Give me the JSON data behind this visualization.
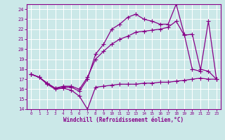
{
  "background_color": "#cbe8e8",
  "grid_color": "#aad4d4",
  "line_color": "#880088",
  "xlabel": "Windchill (Refroidissement éolien,°C)",
  "xlim": [
    -0.5,
    23.5
  ],
  "ylim": [
    14,
    24.5
  ],
  "yticks": [
    14,
    15,
    16,
    17,
    18,
    19,
    20,
    21,
    22,
    23,
    24
  ],
  "xticks": [
    0,
    1,
    2,
    3,
    4,
    5,
    6,
    7,
    8,
    9,
    10,
    11,
    12,
    13,
    14,
    15,
    16,
    17,
    18,
    19,
    20,
    21,
    22,
    23
  ],
  "series": [
    {
      "comment": "bottom flat line - dips to 14 at x=7 then rises slowly",
      "x": [
        0,
        1,
        2,
        3,
        4,
        5,
        6,
        7,
        8,
        9,
        10,
        11,
        12,
        13,
        14,
        15,
        16,
        17,
        18,
        19,
        20,
        21,
        22,
        23
      ],
      "y": [
        17.5,
        17.2,
        16.5,
        16.0,
        16.1,
        15.9,
        15.3,
        14.0,
        16.2,
        16.3,
        16.4,
        16.5,
        16.5,
        16.5,
        16.6,
        16.6,
        16.7,
        16.7,
        16.8,
        16.9,
        17.0,
        17.1,
        17.0,
        17.0
      ]
    },
    {
      "comment": "top wiggly line - rises steeply, peaks ~24.5 at x=18",
      "x": [
        0,
        1,
        2,
        3,
        4,
        5,
        6,
        7,
        8,
        9,
        10,
        11,
        12,
        13,
        14,
        15,
        16,
        17,
        18,
        19,
        20,
        21,
        22,
        23
      ],
      "y": [
        17.5,
        17.2,
        16.6,
        16.1,
        16.2,
        16.2,
        15.8,
        17.0,
        19.5,
        20.5,
        22.0,
        22.5,
        23.2,
        23.5,
        23.0,
        22.8,
        22.5,
        22.5,
        24.5,
        21.5,
        18.0,
        17.8,
        22.8,
        17.0
      ]
    },
    {
      "comment": "middle smooth line - rises gradually to 21.5 at x=20, drops",
      "x": [
        0,
        1,
        2,
        3,
        4,
        5,
        6,
        7,
        8,
        9,
        10,
        11,
        12,
        13,
        14,
        15,
        16,
        17,
        18,
        19,
        20,
        21,
        22,
        23
      ],
      "y": [
        17.5,
        17.2,
        16.6,
        16.1,
        16.3,
        16.3,
        16.0,
        17.2,
        19.0,
        19.8,
        20.5,
        21.0,
        21.3,
        21.7,
        21.8,
        21.9,
        22.0,
        22.2,
        22.8,
        21.4,
        21.5,
        18.0,
        17.8,
        17.0
      ]
    }
  ]
}
